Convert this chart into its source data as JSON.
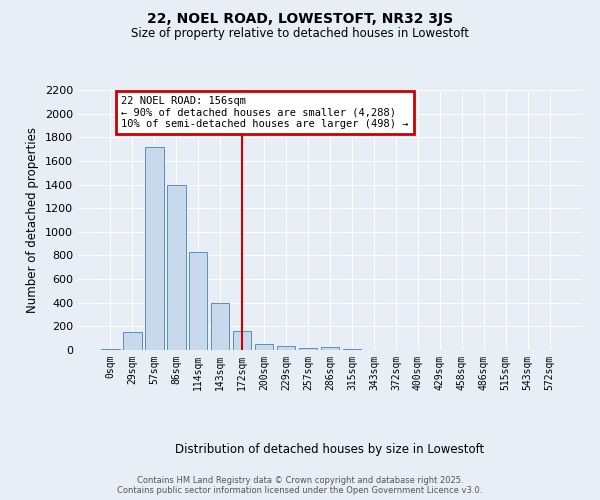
{
  "title": "22, NOEL ROAD, LOWESTOFT, NR32 3JS",
  "subtitle": "Size of property relative to detached houses in Lowestoft",
  "xlabel": "Distribution of detached houses by size in Lowestoft",
  "ylabel": "Number of detached properties",
  "footer_line1": "Contains HM Land Registry data © Crown copyright and database right 2025.",
  "footer_line2": "Contains public sector information licensed under the Open Government Licence v3.0.",
  "bar_labels": [
    "0sqm",
    "29sqm",
    "57sqm",
    "86sqm",
    "114sqm",
    "143sqm",
    "172sqm",
    "200sqm",
    "229sqm",
    "257sqm",
    "286sqm",
    "315sqm",
    "343sqm",
    "372sqm",
    "400sqm",
    "429sqm",
    "458sqm",
    "486sqm",
    "515sqm",
    "543sqm",
    "572sqm"
  ],
  "bar_values": [
    10,
    155,
    1720,
    1400,
    830,
    400,
    165,
    55,
    30,
    20,
    25,
    5,
    3,
    3,
    2,
    1,
    1,
    1,
    0,
    0,
    0
  ],
  "bar_color": "#c9d9ec",
  "bar_edge_color": "#5a8fc0",
  "background_color": "#e8eef5",
  "grid_color": "#ffffff",
  "red_line_index": 6,
  "annotation_title": "22 NOEL ROAD: 156sqm",
  "annotation_line1": "← 90% of detached houses are smaller (4,288)",
  "annotation_line2": "10% of semi-detached houses are larger (498) →",
  "annotation_box_color": "#ffffff",
  "annotation_border_color": "#cc0000",
  "vline_color": "#cc0000",
  "ylim": [
    0,
    2200
  ],
  "yticks": [
    0,
    200,
    400,
    600,
    800,
    1000,
    1200,
    1400,
    1600,
    1800,
    2000,
    2200
  ]
}
